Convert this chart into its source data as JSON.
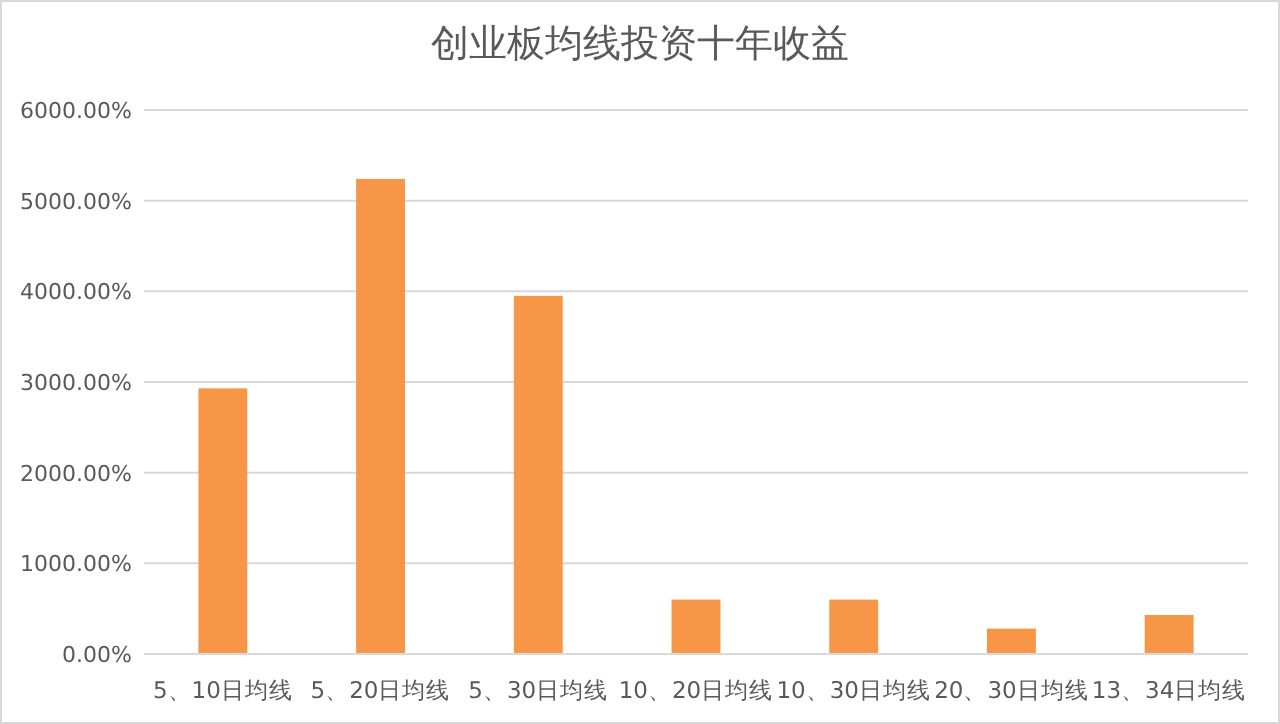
{
  "chart_data": {
    "type": "bar",
    "title": "创业板均线投资十年收益",
    "categories": [
      "5、10日均线",
      "5、20日均线",
      "5、30日均线",
      "10、20日均线",
      "10、30日均线",
      "20、30日均线",
      "13、34日均线"
    ],
    "values": [
      2930,
      5240,
      3950,
      600,
      600,
      280,
      430
    ],
    "color": "#f79646",
    "ylim": [
      0,
      6000
    ],
    "yticks": [
      {
        "value": 0,
        "label": "0.00%"
      },
      {
        "value": 1000,
        "label": "1000.00%"
      },
      {
        "value": 2000,
        "label": "2000.00%"
      },
      {
        "value": 3000,
        "label": "3000.00%"
      },
      {
        "value": 4000,
        "label": "4000.00%"
      },
      {
        "value": 5000,
        "label": "5000.00%"
      },
      {
        "value": 6000,
        "label": "6000.00%"
      }
    ],
    "grid": "y"
  }
}
